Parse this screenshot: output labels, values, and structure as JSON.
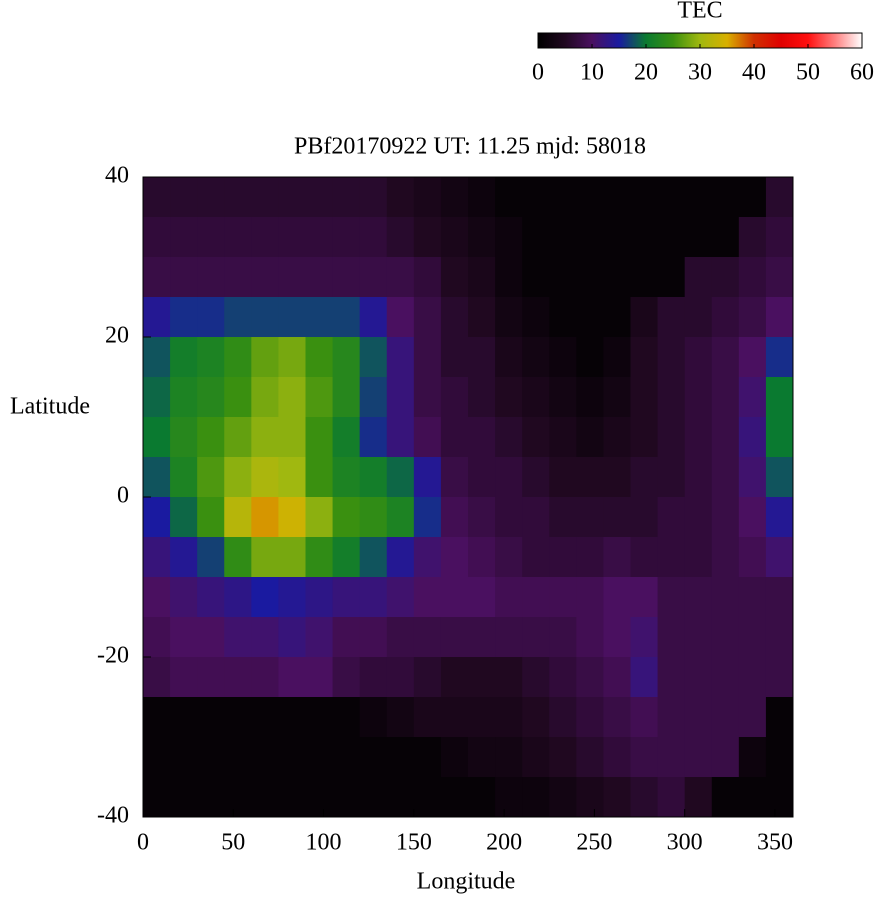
{
  "chart_data": {
    "type": "heatmap",
    "title": "PBf20170922  UT: 11.25  mjd: 58018",
    "x_label": "Longitude",
    "y_label": "Latitude",
    "xlim": [
      0,
      360
    ],
    "ylim": [
      -40,
      40
    ],
    "xticks": [
      0,
      50,
      100,
      150,
      200,
      250,
      300,
      350
    ],
    "yticks": [
      -40,
      -20,
      0,
      20,
      40
    ],
    "x": [
      7.5,
      22.5,
      37.5,
      52.5,
      67.5,
      82.5,
      97.5,
      112.5,
      127.5,
      142.5,
      157.5,
      172.5,
      187.5,
      202.5,
      217.5,
      232.5,
      247.5,
      262.5,
      277.5,
      292.5,
      307.5,
      322.5,
      337.5,
      352.5
    ],
    "y": [
      37.5,
      32.5,
      27.5,
      22.5,
      17.5,
      12.5,
      7.5,
      2.5,
      -2.5,
      -7.5,
      -12.5,
      -17.5,
      -22.5,
      -27.5,
      -32.5,
      -37.5
    ],
    "values": [
      [
        6,
        6,
        6,
        6,
        6,
        6,
        6,
        6,
        6,
        5,
        4,
        3,
        2,
        1,
        1,
        1,
        1,
        1,
        1,
        1,
        1,
        1,
        1,
        6
      ],
      [
        7,
        7,
        7,
        7,
        7,
        7,
        7,
        7,
        7,
        6,
        5,
        4,
        3,
        2,
        1,
        1,
        1,
        1,
        1,
        1,
        1,
        1,
        6,
        7
      ],
      [
        8,
        8,
        8,
        8,
        8,
        8,
        8,
        8,
        8,
        8,
        7,
        5,
        4,
        2,
        1,
        1,
        1,
        1,
        1,
        1,
        6,
        6,
        7,
        8
      ],
      [
        14,
        16,
        16,
        17,
        17,
        17,
        17,
        17,
        14,
        10,
        8,
        6,
        5,
        3,
        2,
        1,
        1,
        1,
        4,
        6,
        6,
        7,
        8,
        10
      ],
      [
        18,
        21,
        22,
        24,
        27,
        28,
        25,
        23,
        18,
        12,
        8,
        6,
        6,
        4,
        3,
        2,
        1,
        2,
        5,
        6,
        7,
        8,
        10,
        16
      ],
      [
        19,
        22,
        23,
        25,
        28,
        29,
        26,
        23,
        17,
        12,
        8,
        7,
        6,
        5,
        4,
        3,
        2,
        3,
        5,
        6,
        7,
        8,
        11,
        20
      ],
      [
        20,
        23,
        25,
        27,
        29,
        29,
        25,
        21,
        16,
        12,
        9,
        7,
        7,
        6,
        5,
        4,
        3,
        4,
        5,
        6,
        7,
        8,
        12,
        20
      ],
      [
        18,
        22,
        26,
        29,
        31,
        30,
        25,
        22,
        21,
        19,
        14,
        8,
        7,
        7,
        6,
        5,
        5,
        5,
        6,
        6,
        7,
        8,
        11,
        18
      ],
      [
        15,
        19,
        25,
        32,
        36,
        34,
        29,
        25,
        24,
        22,
        16,
        9,
        8,
        7,
        7,
        6,
        6,
        6,
        6,
        7,
        7,
        8,
        10,
        14
      ],
      [
        12,
        14,
        17,
        24,
        28,
        28,
        24,
        21,
        18,
        14,
        11,
        10,
        9,
        8,
        7,
        7,
        7,
        8,
        7,
        7,
        7,
        8,
        9,
        11
      ],
      [
        10,
        11,
        12,
        13,
        15,
        14,
        13,
        12,
        12,
        11,
        10,
        10,
        10,
        9,
        9,
        9,
        9,
        10,
        10,
        8,
        8,
        8,
        8,
        8
      ],
      [
        9,
        10,
        10,
        11,
        11,
        12,
        11,
        9,
        9,
        8,
        8,
        8,
        8,
        8,
        8,
        8,
        9,
        10,
        11,
        8,
        8,
        8,
        8,
        8
      ],
      [
        8,
        9,
        9,
        9,
        9,
        10,
        10,
        8,
        7,
        7,
        6,
        5,
        5,
        5,
        6,
        7,
        8,
        9,
        12,
        8,
        8,
        8,
        8,
        8
      ],
      [
        1,
        1,
        1,
        1,
        1,
        1,
        1,
        1,
        2,
        3,
        4,
        4,
        4,
        4,
        5,
        6,
        7,
        8,
        9,
        8,
        8,
        8,
        8,
        1
      ],
      [
        1,
        1,
        1,
        1,
        1,
        1,
        1,
        1,
        1,
        1,
        1,
        2,
        3,
        3,
        4,
        5,
        6,
        7,
        8,
        8,
        8,
        8,
        2,
        1
      ],
      [
        1,
        1,
        1,
        1,
        1,
        1,
        1,
        1,
        1,
        1,
        1,
        1,
        1,
        2,
        2,
        3,
        4,
        5,
        6,
        7,
        5,
        1,
        1,
        1
      ]
    ],
    "colorbar": {
      "label": "TEC",
      "lim": [
        0,
        60
      ],
      "ticks": [
        0,
        10,
        20,
        30,
        40,
        50,
        60
      ]
    },
    "colors": [
      "#000000",
      "#200820",
      "#4a1060",
      "#1a1aa0",
      "#0a7a30",
      "#3a9010",
      "#a0b810",
      "#d8b000",
      "#d03000",
      "#e00000",
      "#ff1010",
      "#ff8080",
      "#ffffff"
    ]
  }
}
